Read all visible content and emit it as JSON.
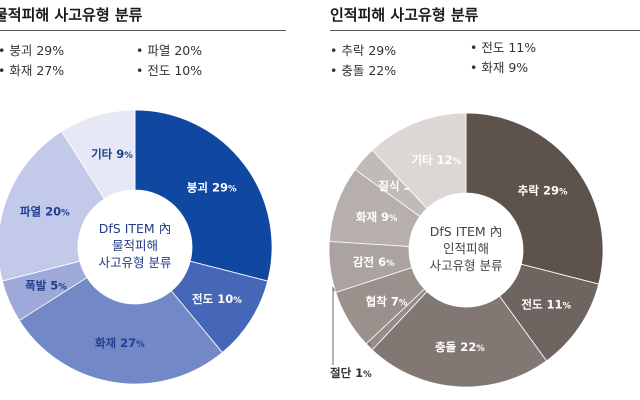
{
  "panels": [
    {
      "title": "물적피해 사고유형 분류",
      "summary_col1": [
        "• 붕괴 29%",
        "• 화재 27%"
      ],
      "summary_col2": [
        "• 파열 20%",
        "• 전도 10%"
      ]
    },
    {
      "title": "인적피해 사고유형 분류",
      "summary_col1": [
        "• 추락 29%",
        "• 충돌 22%"
      ],
      "summary_col2": [
        "• 전도 11%",
        "• 화재 9%"
      ]
    }
  ],
  "chart_data": [
    {
      "type": "pie",
      "title": "물적피해 사고유형 분류",
      "center_label": [
        "DfS ITEM 內",
        "물적피해",
        "사고유형 분류"
      ],
      "unit": "%",
      "slices": [
        {
          "label": "붕괴",
          "value": 29,
          "color": "#0f47a1"
        },
        {
          "label": "전도",
          "value": 10,
          "color": "#4666b8"
        },
        {
          "label": "화재",
          "value": 27,
          "color": "#7388c6"
        },
        {
          "label": "폭발",
          "value": 5,
          "color": "#9ea9d9"
        },
        {
          "label": "파열",
          "value": 20,
          "color": "#c3c9e9"
        },
        {
          "label": "기타",
          "value": 9,
          "color": "#e6e8f6"
        }
      ]
    },
    {
      "type": "pie",
      "title": "인적피해 사고유형 분류",
      "center_label": [
        "DfS ITEM 內",
        "인적피해",
        "사고유형 분류"
      ],
      "unit": "%",
      "slices": [
        {
          "label": "추락",
          "value": 29,
          "color": "#5d524c"
        },
        {
          "label": "전도",
          "value": 11,
          "color": "#6f6560"
        },
        {
          "label": "충돌",
          "value": 22,
          "color": "#827873"
        },
        {
          "label": "절단",
          "value": 1,
          "color": "#968c87"
        },
        {
          "label": "협착",
          "value": 7,
          "color": "#9a918c"
        },
        {
          "label": "감전",
          "value": 6,
          "color": "#aba39f"
        },
        {
          "label": "화재",
          "value": 9,
          "color": "#b6afab"
        },
        {
          "label": "질식",
          "value": 3,
          "color": "#c1bbb7"
        },
        {
          "label": "기타",
          "value": 12,
          "color": "#dcd7d4"
        }
      ]
    }
  ]
}
